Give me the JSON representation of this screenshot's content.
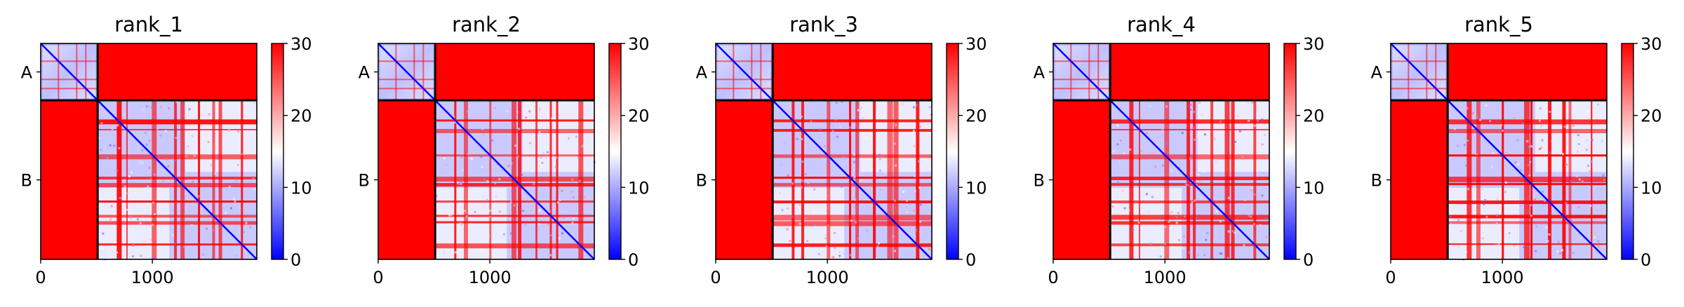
{
  "chart_data": [
    {
      "type": "heatmap",
      "title": "rank_1",
      "chain_labels": [
        "A",
        "B"
      ],
      "x_ticks": [
        "0",
        "1000"
      ],
      "x_tick_values": [
        0,
        1000
      ],
      "x_range": [
        0,
        1935
      ],
      "chain_boundaries": [
        0,
        510,
        1935
      ],
      "colorbar": {
        "min": 0,
        "max": 30,
        "ticks": [
          "0",
          "10",
          "20",
          "30"
        ],
        "colormap": "bwr"
      }
    },
    {
      "type": "heatmap",
      "title": "rank_2",
      "chain_labels": [
        "A",
        "B"
      ],
      "x_ticks": [
        "0",
        "1000"
      ],
      "x_tick_values": [
        0,
        1000
      ],
      "x_range": [
        0,
        1935
      ],
      "chain_boundaries": [
        0,
        510,
        1935
      ],
      "colorbar": {
        "min": 0,
        "max": 30,
        "ticks": [
          "0",
          "10",
          "20",
          "30"
        ],
        "colormap": "bwr"
      }
    },
    {
      "type": "heatmap",
      "title": "rank_3",
      "chain_labels": [
        "A",
        "B"
      ],
      "x_ticks": [
        "0",
        "1000"
      ],
      "x_tick_values": [
        0,
        1000
      ],
      "x_range": [
        0,
        1935
      ],
      "chain_boundaries": [
        0,
        510,
        1935
      ],
      "colorbar": {
        "min": 0,
        "max": 30,
        "ticks": [
          "0",
          "10",
          "20",
          "30"
        ],
        "colormap": "bwr"
      }
    },
    {
      "type": "heatmap",
      "title": "rank_4",
      "chain_labels": [
        "A",
        "B"
      ],
      "x_ticks": [
        "0",
        "1000"
      ],
      "x_tick_values": [
        0,
        1000
      ],
      "x_range": [
        0,
        1935
      ],
      "chain_boundaries": [
        0,
        510,
        1935
      ],
      "colorbar": {
        "min": 0,
        "max": 30,
        "ticks": [
          "0",
          "10",
          "20",
          "30"
        ],
        "colormap": "bwr"
      }
    },
    {
      "type": "heatmap",
      "title": "rank_5",
      "chain_labels": [
        "A",
        "B"
      ],
      "x_ticks": [
        "0",
        "1000"
      ],
      "x_tick_values": [
        0,
        1000
      ],
      "x_range": [
        0,
        1935
      ],
      "chain_boundaries": [
        0,
        510,
        1935
      ],
      "colorbar": {
        "min": 0,
        "max": 30,
        "ticks": [
          "0",
          "10",
          "20",
          "30"
        ],
        "colormap": "bwr"
      }
    }
  ],
  "colors": {
    "low": "#0000ff",
    "mid": "#ffffff",
    "high": "#ff0000",
    "boundary": "#000000"
  }
}
